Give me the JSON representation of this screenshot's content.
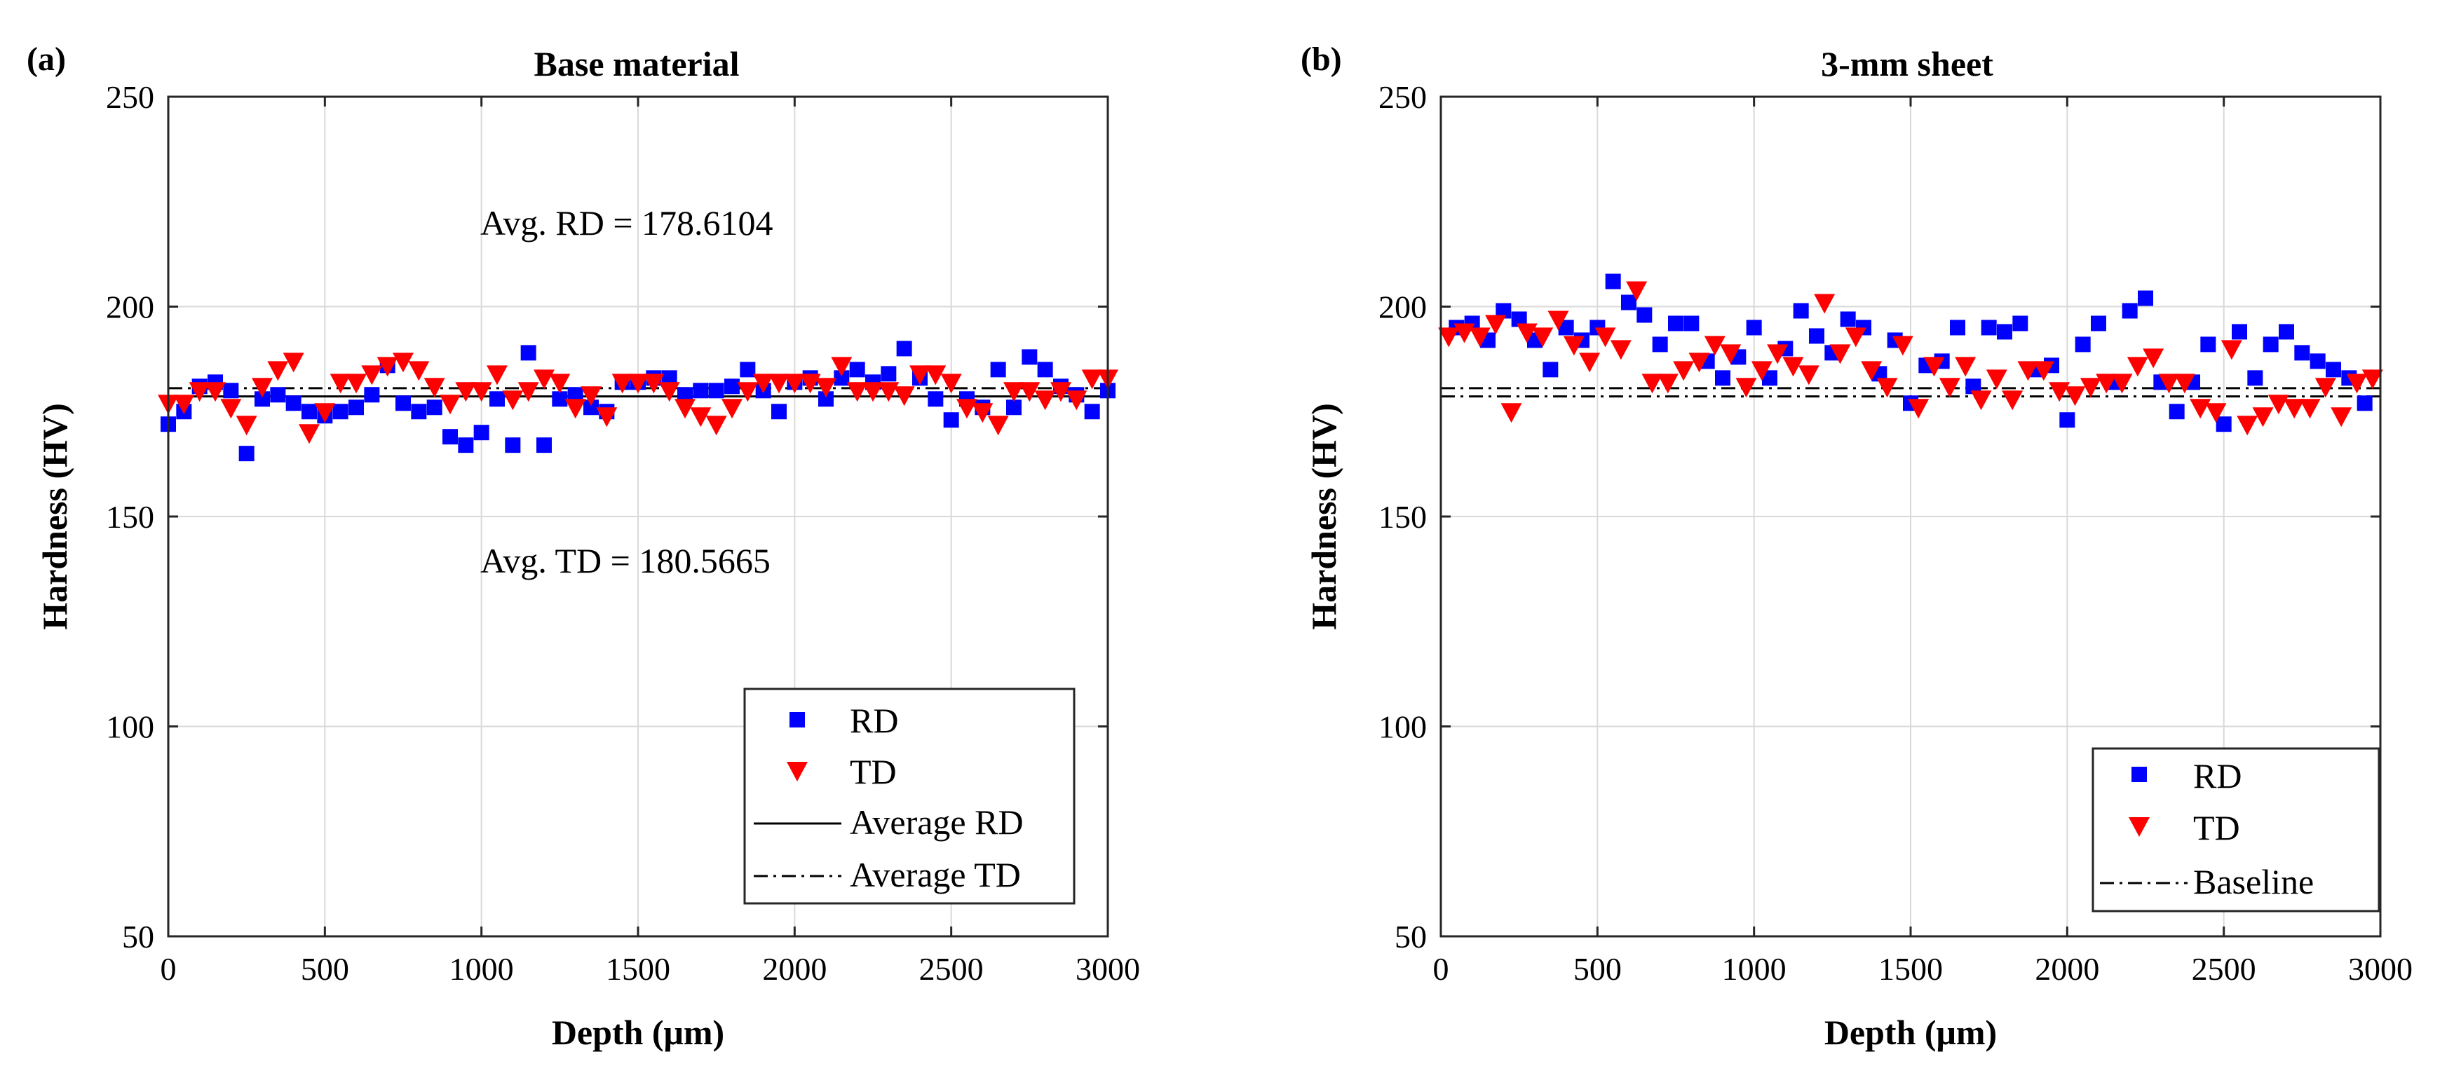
{
  "chart_data": [
    {
      "type": "scatter",
      "panel_label": "(a)",
      "title": "Base material",
      "xlabel": "Depth (μm)",
      "ylabel": "Hardness (HV)",
      "xlim": [
        0,
        3000
      ],
      "ylim": [
        50,
        250
      ],
      "xticks": [
        0,
        500,
        1000,
        1500,
        2000,
        2500,
        3000
      ],
      "yticks": [
        50,
        100,
        150,
        200,
        250
      ],
      "grid": true,
      "annotations": [
        "Avg. RD = 178.6104",
        "Avg. TD = 180.5665"
      ],
      "legend_position": "bottom-right",
      "series": [
        {
          "name": "RD",
          "marker": "square",
          "color": "#0000ff",
          "x": [
            0,
            50,
            100,
            150,
            200,
            250,
            300,
            350,
            400,
            450,
            500,
            550,
            600,
            650,
            700,
            750,
            800,
            850,
            900,
            950,
            1000,
            1050,
            1100,
            1150,
            1200,
            1250,
            1300,
            1350,
            1400,
            1450,
            1500,
            1550,
            1600,
            1650,
            1700,
            1750,
            1800,
            1850,
            1900,
            1950,
            2000,
            2050,
            2100,
            2150,
            2200,
            2250,
            2300,
            2350,
            2400,
            2450,
            2500,
            2550,
            2600,
            2650,
            2700,
            2750,
            2800,
            2850,
            2900,
            2950,
            3000
          ],
          "y": [
            172,
            175,
            181,
            182,
            180,
            165,
            178,
            179,
            177,
            175,
            174,
            175,
            176,
            179,
            186,
            177,
            175,
            176,
            169,
            167,
            170,
            178,
            167,
            189,
            167,
            178,
            179,
            176,
            175,
            182,
            182,
            183,
            183,
            179,
            180,
            180,
            181,
            185,
            180,
            175,
            182,
            183,
            178,
            183,
            185,
            182,
            184,
            190,
            183,
            178,
            173,
            178,
            176,
            185,
            176,
            188,
            185,
            181,
            179,
            175,
            180
          ]
        },
        {
          "name": "TD",
          "marker": "triangle-down",
          "color": "#ff0000",
          "x": [
            0,
            50,
            100,
            150,
            200,
            250,
            300,
            350,
            400,
            450,
            500,
            550,
            600,
            650,
            700,
            750,
            800,
            850,
            900,
            950,
            1000,
            1050,
            1100,
            1150,
            1200,
            1250,
            1300,
            1350,
            1400,
            1450,
            1500,
            1550,
            1600,
            1650,
            1700,
            1750,
            1800,
            1850,
            1900,
            1950,
            2000,
            2050,
            2100,
            2150,
            2200,
            2250,
            2300,
            2350,
            2400,
            2450,
            2500,
            2550,
            2600,
            2650,
            2700,
            2750,
            2800,
            2850,
            2900,
            2950,
            3000
          ],
          "y": [
            177,
            177,
            180,
            180,
            176,
            172,
            181,
            185,
            187,
            170,
            175,
            182,
            182,
            184,
            186,
            187,
            185,
            181,
            177,
            180,
            180,
            184,
            178,
            180,
            183,
            182,
            176,
            179,
            174,
            182,
            182,
            182,
            180,
            176,
            174,
            172,
            176,
            180,
            182,
            182,
            182,
            182,
            181,
            186,
            180,
            180,
            180,
            179,
            184,
            184,
            182,
            176,
            175,
            172,
            180,
            180,
            178,
            180,
            178,
            183,
            183
          ]
        },
        {
          "name": "Average RD",
          "line": "solid",
          "color": "#000000",
          "y_const": 178.6104
        },
        {
          "name": "Average TD",
          "line": "dashdot",
          "color": "#000000",
          "y_const": 180.5665
        }
      ]
    },
    {
      "type": "scatter",
      "panel_label": "(b)",
      "title": "3-mm sheet",
      "xlabel": "Depth (μm)",
      "ylabel": "Hardness (HV)",
      "xlim": [
        0,
        3000
      ],
      "ylim": [
        50,
        250
      ],
      "xticks": [
        0,
        500,
        1000,
        1500,
        2000,
        2500,
        3000
      ],
      "yticks": [
        50,
        100,
        150,
        200,
        250
      ],
      "grid": true,
      "legend_position": "bottom-right",
      "series": [
        {
          "name": "RD",
          "marker": "square",
          "color": "#0000ff",
          "x": [
            50,
            100,
            150,
            200,
            250,
            300,
            350,
            400,
            450,
            500,
            550,
            600,
            650,
            700,
            750,
            800,
            850,
            900,
            950,
            1000,
            1050,
            1100,
            1150,
            1200,
            1250,
            1300,
            1350,
            1400,
            1450,
            1500,
            1550,
            1600,
            1650,
            1700,
            1750,
            1800,
            1850,
            1900,
            1950,
            2000,
            2050,
            2100,
            2150,
            2200,
            2250,
            2300,
            2350,
            2400,
            2450,
            2500,
            2550,
            2600,
            2650,
            2700,
            2750,
            2800,
            2850,
            2900,
            2950
          ],
          "y": [
            195,
            196,
            192,
            199,
            197,
            192,
            185,
            195,
            192,
            195,
            206,
            201,
            198,
            191,
            196,
            196,
            187,
            183,
            188,
            195,
            183,
            190,
            199,
            193,
            189,
            197,
            195,
            184,
            192,
            177,
            186,
            187,
            195,
            181,
            195,
            194,
            196,
            185,
            186,
            173,
            191,
            196,
            182,
            199,
            202,
            182,
            175,
            182,
            191,
            172,
            194,
            183,
            191,
            194,
            189,
            187,
            185,
            183,
            177
          ]
        },
        {
          "name": "TD",
          "marker": "triangle-down",
          "color": "#ff0000",
          "x": [
            25,
            75,
            125,
            175,
            225,
            275,
            325,
            375,
            425,
            475,
            525,
            575,
            625,
            675,
            725,
            775,
            825,
            875,
            925,
            975,
            1025,
            1075,
            1125,
            1175,
            1225,
            1275,
            1325,
            1375,
            1425,
            1475,
            1525,
            1575,
            1625,
            1675,
            1725,
            1775,
            1825,
            1875,
            1925,
            1975,
            2025,
            2075,
            2125,
            2175,
            2225,
            2275,
            2325,
            2375,
            2425,
            2475,
            2525,
            2575,
            2625,
            2675,
            2725,
            2775,
            2825,
            2875,
            2925,
            2975
          ],
          "y": [
            193,
            194,
            193,
            196,
            175,
            194,
            193,
            197,
            191,
            187,
            193,
            190,
            204,
            182,
            182,
            185,
            187,
            191,
            189,
            181,
            185,
            189,
            186,
            184,
            201,
            189,
            193,
            185,
            181,
            191,
            176,
            186,
            181,
            186,
            178,
            183,
            178,
            185,
            185,
            180,
            179,
            181,
            182,
            182,
            186,
            188,
            182,
            182,
            176,
            175,
            190,
            172,
            174,
            177,
            176,
            176,
            181,
            174,
            182,
            183
          ]
        },
        {
          "name": "Baseline",
          "line": "dashdot",
          "color": "#000000",
          "y_const": [
            178.6104,
            180.5665
          ]
        }
      ]
    }
  ]
}
